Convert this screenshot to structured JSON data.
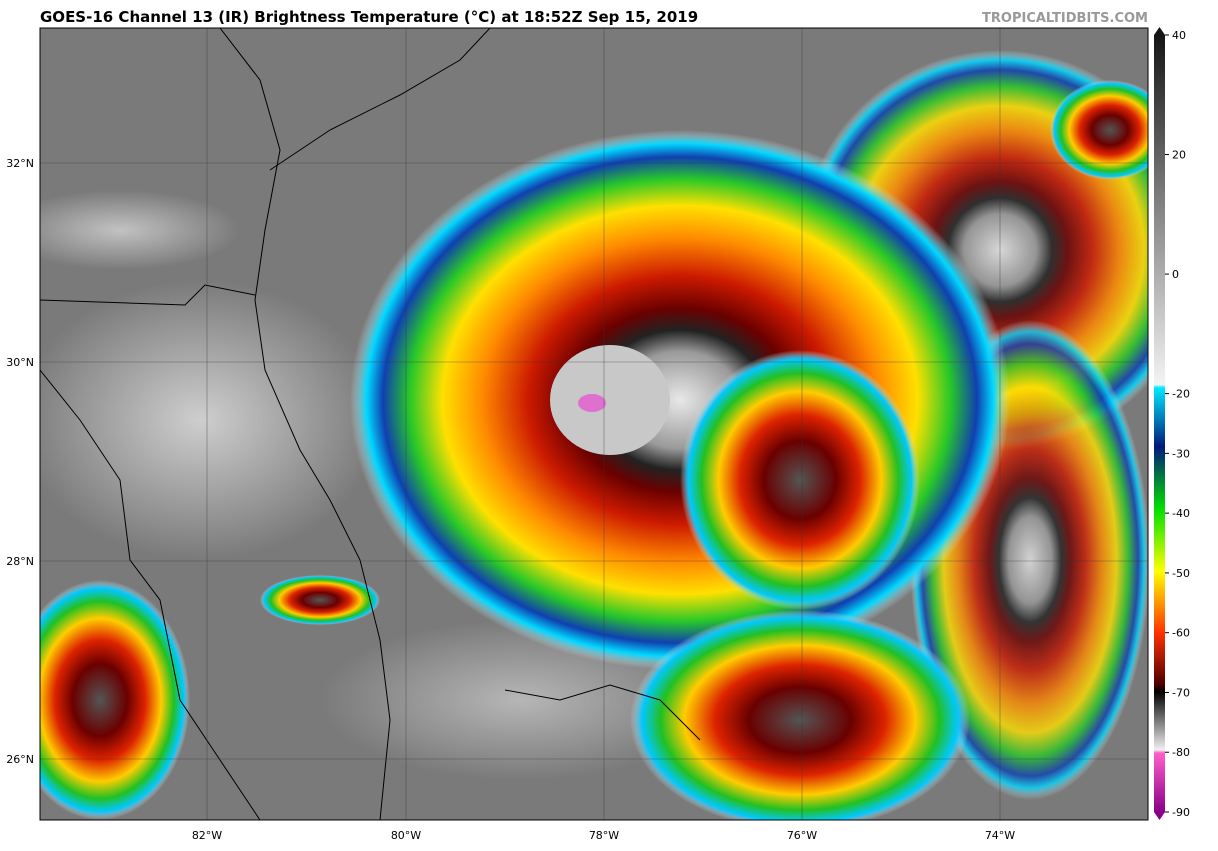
{
  "header": {
    "title": "GOES-16 Channel 13 (IR) Brightness Temperature (°C) at 18:52Z Sep 15, 2019",
    "site": "TROPICALTIDBITS.COM"
  },
  "map": {
    "latitudes": [
      "32°N",
      "30°N",
      "28°N",
      "26°N"
    ],
    "longitudes": [
      "82°W",
      "80°W",
      "78°W",
      "76°W",
      "74°W"
    ]
  },
  "colorbar": {
    "range": [
      -90,
      40
    ],
    "ticks": [
      40,
      20,
      0,
      -20,
      -30,
      -40,
      -50,
      -60,
      -70,
      -80,
      -90
    ]
  }
}
